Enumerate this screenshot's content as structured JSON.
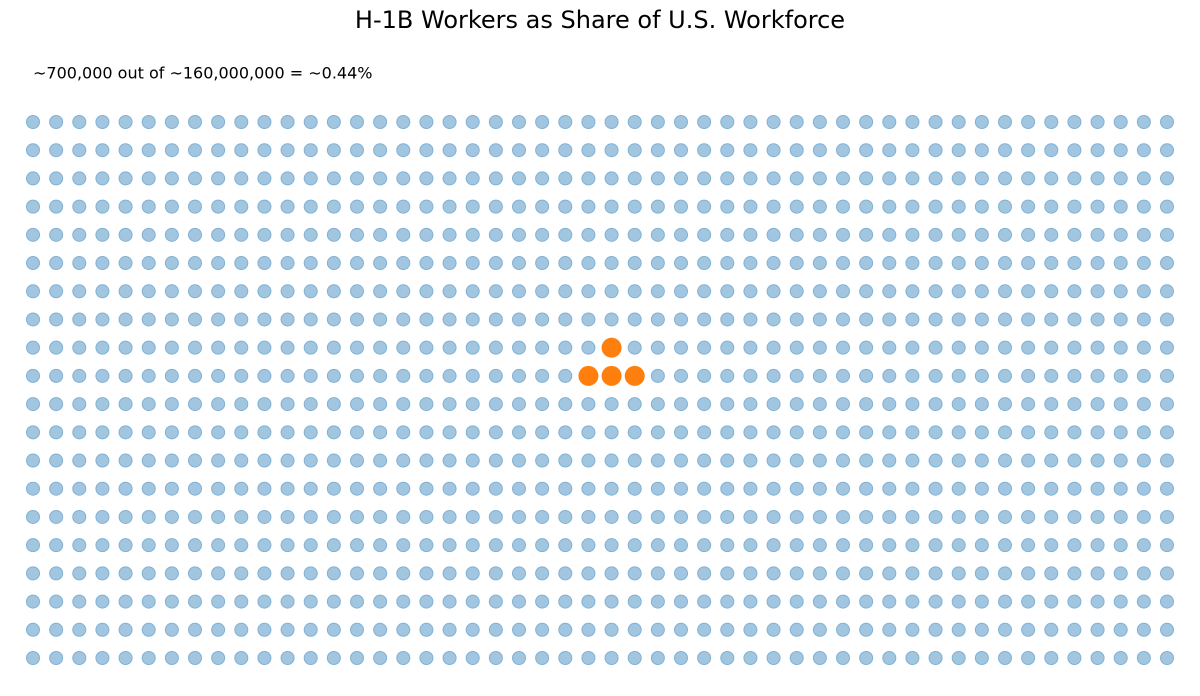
{
  "chart_data": {
    "type": "waffle",
    "title": "H-1B Workers as Share of U.S. Workforce",
    "subtitle": "~700,000 out of ~160,000,000 = ~0.44%",
    "rows": 20,
    "columns": 50,
    "color": "#a3c6e0",
    "edge_color": "#7fb1d6",
    "highlight_color": "#ff7f0e",
    "highlighted_cells": [
      [
        8,
        25
      ],
      [
        9,
        24
      ],
      [
        9,
        25
      ],
      [
        9,
        26
      ]
    ]
  }
}
